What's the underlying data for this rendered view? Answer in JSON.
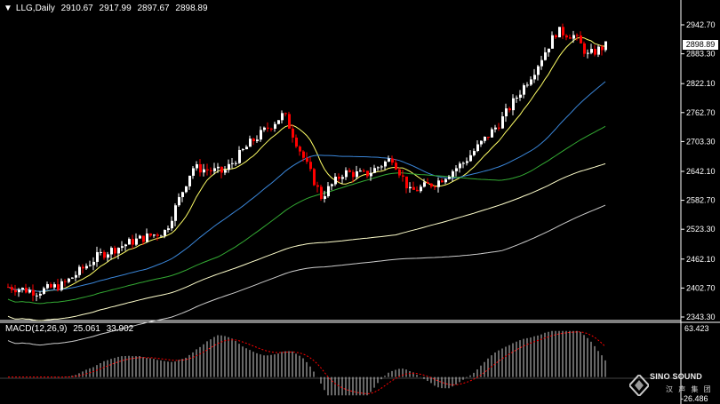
{
  "header": {
    "symbol_timeframe": "LLG,Daily",
    "open": "2910.67",
    "high": "2917.99",
    "low": "2897.67",
    "close": "2898.89"
  },
  "current_price_label": "2898.89",
  "price_axis": {
    "labels": [
      "2942.70",
      "2883.30",
      "2822.10",
      "2762.70",
      "2703.30",
      "2642.10",
      "2582.70",
      "2523.30",
      "2462.10",
      "2402.70",
      "2343.30"
    ],
    "min": 2343.3,
    "max": 2942.7
  },
  "macd": {
    "label": "MACD(12,26,9)",
    "main": "25.061",
    "signal": "33.902",
    "axis_top": "63.423",
    "axis_bottom": "-26.486"
  },
  "logo": {
    "brand": "SINO SOUND",
    "sub": "汉 声 集 团"
  },
  "colors": {
    "background": "#000000",
    "bull": "#ffffff",
    "bear": "#ff0000",
    "ma_fast": "#ffff66",
    "ma_medium": "#3a86d9",
    "ma_slow": "#33aa33",
    "ma_long": "#ffffcc",
    "ma_longest": "#cccccc",
    "macd_hist": "#cccccc",
    "macd_signal": "#ff0000"
  },
  "icons": {
    "menu": "triangle-down-icon"
  }
}
